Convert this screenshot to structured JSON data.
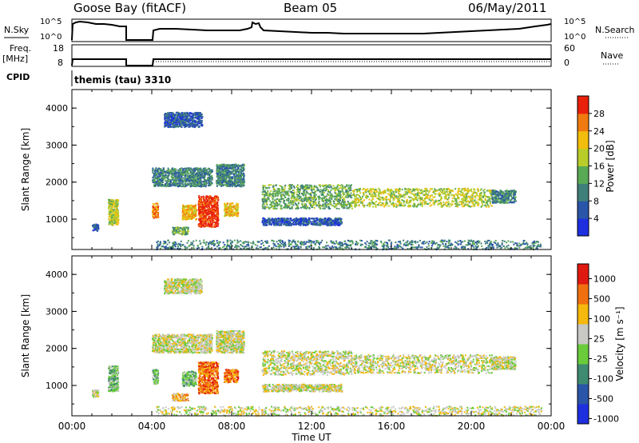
{
  "header": {
    "site": "Goose Bay (fitACF)",
    "beam": "Beam 05",
    "date": "06/May/2011"
  },
  "strip_panels": {
    "nsky": {
      "label": "N.Sky",
      "ticks": [
        "10^5",
        "10^0"
      ]
    },
    "nsearch": {
      "label": "N.Search",
      "ticks": [
        "10^5",
        "10^0"
      ]
    },
    "freq": {
      "label_line1": "Freq.",
      "label_line2": "[MHz]",
      "ticks": [
        "18",
        "8"
      ]
    },
    "nave": {
      "label": "Nave",
      "ticks": [
        "60",
        "0"
      ]
    },
    "cpid": {
      "label": "CPID",
      "value": "themis (tau) 3310"
    }
  },
  "chart_data": [
    {
      "type": "heatmap",
      "name": "Power",
      "xlabel": "",
      "ylabel": "Slant Range [km]",
      "xlim_hours": [
        0,
        24
      ],
      "ylim_km": [
        180,
        4500
      ],
      "y_ticks": [
        "1000",
        "2000",
        "3000",
        "4000"
      ],
      "colorbar": {
        "label": "Power [dB]",
        "ticks": [
          "4",
          "8",
          "12",
          "16",
          "20",
          "24",
          "28"
        ],
        "colors": [
          "#1e2fe0",
          "#2a55a8",
          "#3f7f7a",
          "#5aaa55",
          "#b8cc2a",
          "#f2bd0c",
          "#f07a10",
          "#e8200c"
        ]
      },
      "regions": [
        {
          "t": [
            1.0,
            1.3
          ],
          "r": [
            700,
            900
          ],
          "level": 1
        },
        {
          "t": [
            1.8,
            2.3
          ],
          "r": [
            850,
            1550
          ],
          "level": 4
        },
        {
          "t": [
            4.0,
            4.3
          ],
          "r": [
            1050,
            1450
          ],
          "level": 6
        },
        {
          "t": [
            4.0,
            7.0
          ],
          "r": [
            1900,
            2400
          ],
          "level": 2
        },
        {
          "t": [
            5.0,
            5.8
          ],
          "r": [
            600,
            800
          ],
          "level": 3
        },
        {
          "t": [
            5.5,
            6.2
          ],
          "r": [
            1000,
            1400
          ],
          "level": 5
        },
        {
          "t": [
            6.3,
            7.3
          ],
          "r": [
            800,
            1650
          ],
          "level": 7
        },
        {
          "t": [
            7.2,
            8.6
          ],
          "r": [
            1900,
            2500
          ],
          "level": 2
        },
        {
          "t": [
            7.6,
            8.3
          ],
          "r": [
            1100,
            1450
          ],
          "level": 5
        },
        {
          "t": [
            4.6,
            6.5
          ],
          "r": [
            3500,
            3900
          ],
          "level": 1
        },
        {
          "t": [
            9.5,
            14
          ],
          "r": [
            1300,
            1950
          ],
          "level": 3
        },
        {
          "t": [
            14,
            21
          ],
          "r": [
            1350,
            1850
          ],
          "level": 4
        },
        {
          "t": [
            21,
            22.2
          ],
          "r": [
            1450,
            1800
          ],
          "level": 2
        },
        {
          "t": [
            9.5,
            13.5
          ],
          "r": [
            850,
            1050
          ],
          "level": 1
        },
        {
          "t": [
            4.2,
            23.5
          ],
          "r": [
            200,
            450
          ],
          "level": 2
        }
      ]
    },
    {
      "type": "heatmap",
      "name": "Velocity",
      "xlabel": "Time UT",
      "ylabel": "Slant Range [km]",
      "xlim_hours": [
        0,
        24
      ],
      "ylim_km": [
        180,
        4500
      ],
      "x_ticks": [
        "00:00",
        "04:00",
        "08:00",
        "12:00",
        "16:00",
        "20:00",
        "00:00"
      ],
      "y_ticks": [
        "1000",
        "2000",
        "3000",
        "4000"
      ],
      "colorbar": {
        "label": "Velocity [m s⁻¹]",
        "ticks": [
          "1000",
          "500",
          "100",
          "25",
          "-25",
          "-100",
          "-500",
          "-1000"
        ],
        "colors": [
          "#1e2fe0",
          "#2a55a8",
          "#3f8a70",
          "#6acc3a",
          "#c8c8c4",
          "#f5b80c",
          "#f07010",
          "#e01a10"
        ]
      },
      "regions": [
        {
          "t": [
            1.0,
            1.3
          ],
          "r": [
            700,
            900
          ],
          "level": 4
        },
        {
          "t": [
            1.8,
            2.3
          ],
          "r": [
            850,
            1550
          ],
          "level": 3
        },
        {
          "t": [
            4.0,
            4.3
          ],
          "r": [
            1050,
            1450
          ],
          "level": 3
        },
        {
          "t": [
            4.0,
            7.0
          ],
          "r": [
            1900,
            2400
          ],
          "level": 4
        },
        {
          "t": [
            5.0,
            5.8
          ],
          "r": [
            600,
            800
          ],
          "level": 5
        },
        {
          "t": [
            5.5,
            6.2
          ],
          "r": [
            1000,
            1400
          ],
          "level": 3
        },
        {
          "t": [
            6.3,
            7.3
          ],
          "r": [
            800,
            1650
          ],
          "level": 6
        },
        {
          "t": [
            7.2,
            8.6
          ],
          "r": [
            1900,
            2500
          ],
          "level": 4
        },
        {
          "t": [
            7.6,
            8.3
          ],
          "r": [
            1100,
            1450
          ],
          "level": 6
        },
        {
          "t": [
            4.6,
            6.5
          ],
          "r": [
            3500,
            3900
          ],
          "level": 4
        },
        {
          "t": [
            9.5,
            14
          ],
          "r": [
            1300,
            1950
          ],
          "level": 4
        },
        {
          "t": [
            14,
            21
          ],
          "r": [
            1350,
            1850
          ],
          "level": 4
        },
        {
          "t": [
            21,
            22.2
          ],
          "r": [
            1450,
            1800
          ],
          "level": 4
        },
        {
          "t": [
            9.5,
            13.5
          ],
          "r": [
            850,
            1050
          ],
          "level": 4
        },
        {
          "t": [
            4.2,
            23.5
          ],
          "r": [
            200,
            450
          ],
          "level": 4
        }
      ]
    }
  ]
}
